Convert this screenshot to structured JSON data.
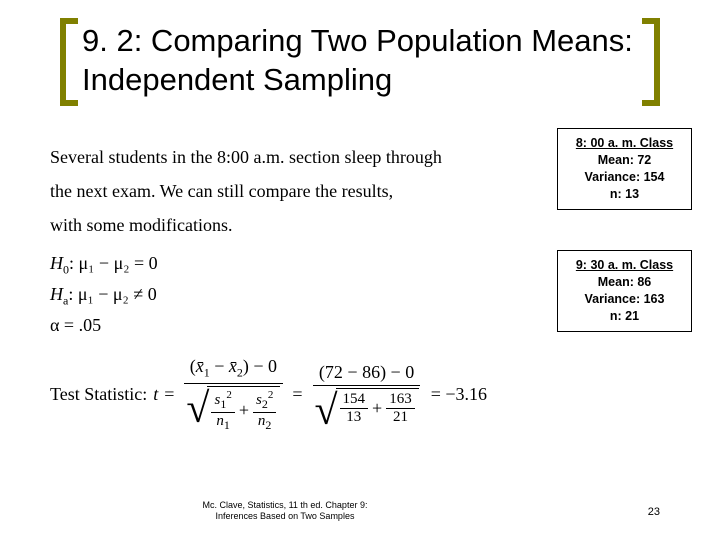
{
  "title": "9. 2: Comparing Two Population Means: Independent Sampling",
  "body": {
    "line1": "Several students in the 8:00 a.m. section sleep through",
    "line2": "the next exam.  We can still compare the results,",
    "line3": "with some modifications."
  },
  "hypotheses": {
    "h0_label": "H",
    "h0_sub": "0",
    "h0_expr": ": μ₁ − μ₂ = 0",
    "ha_label": "H",
    "ha_sub": "a",
    "ha_expr": ": μ₁ − μ₂ ≠ 0",
    "alpha": "α = .05"
  },
  "box1": {
    "header": "8: 00 a. m. Class",
    "mean": "Mean: 72",
    "variance": "Variance: 154",
    "n": "n:  13"
  },
  "box2": {
    "header": "9: 30 a. m. Class",
    "mean": "Mean: 86",
    "variance": "Variance: 163",
    "n": "n:  21"
  },
  "formula": {
    "label": "Test Statistic:",
    "tvar": "t",
    "eq": "=",
    "num1_a": "x̄",
    "num1_b": "x̄",
    "num1_sub1": "1",
    "num1_sub2": "2",
    "num1_tail": " − 0",
    "den_s": "s",
    "den_n": "n",
    "plus": "+",
    "num2": "(72 − 86) − 0",
    "den2_a_n": "154",
    "den2_a_d": "13",
    "den2_b_n": "163",
    "den2_b_d": "21",
    "result": "= −3.16"
  },
  "footer": {
    "left_line1": "Mc. Clave, Statistics, 11 th ed. Chapter 9:",
    "left_line2": "Inferences Based on Two Samples",
    "page": "23"
  },
  "style": {
    "bracket_color": "#808000",
    "text_color": "#000000",
    "background": "#ffffff"
  }
}
